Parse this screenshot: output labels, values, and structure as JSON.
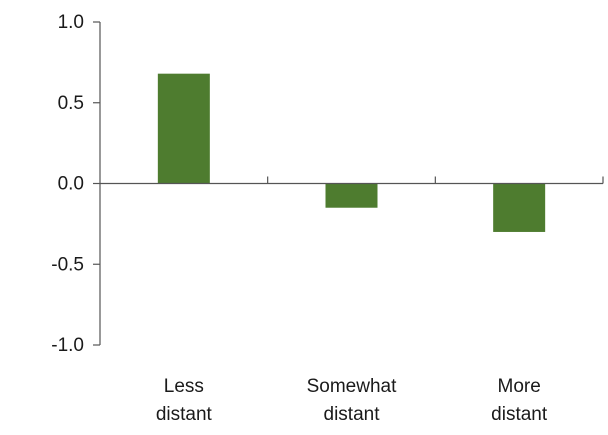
{
  "chart_data": {
    "type": "bar",
    "categories": [
      [
        "Less",
        "distant"
      ],
      [
        "Somewhat",
        "distant"
      ],
      [
        "More",
        "distant"
      ]
    ],
    "values": [
      0.68,
      -0.15,
      -0.3
    ],
    "ylim": [
      -1.0,
      1.0
    ],
    "yticks": [
      1.0,
      0.5,
      0.0,
      -0.5,
      -1.0
    ],
    "ytick_labels": [
      "1.0",
      "0.5",
      "0.0",
      "-0.5",
      "-1.0"
    ],
    "grid": false,
    "bar_color": "#4e7c2f",
    "axis_color": "#555555"
  }
}
